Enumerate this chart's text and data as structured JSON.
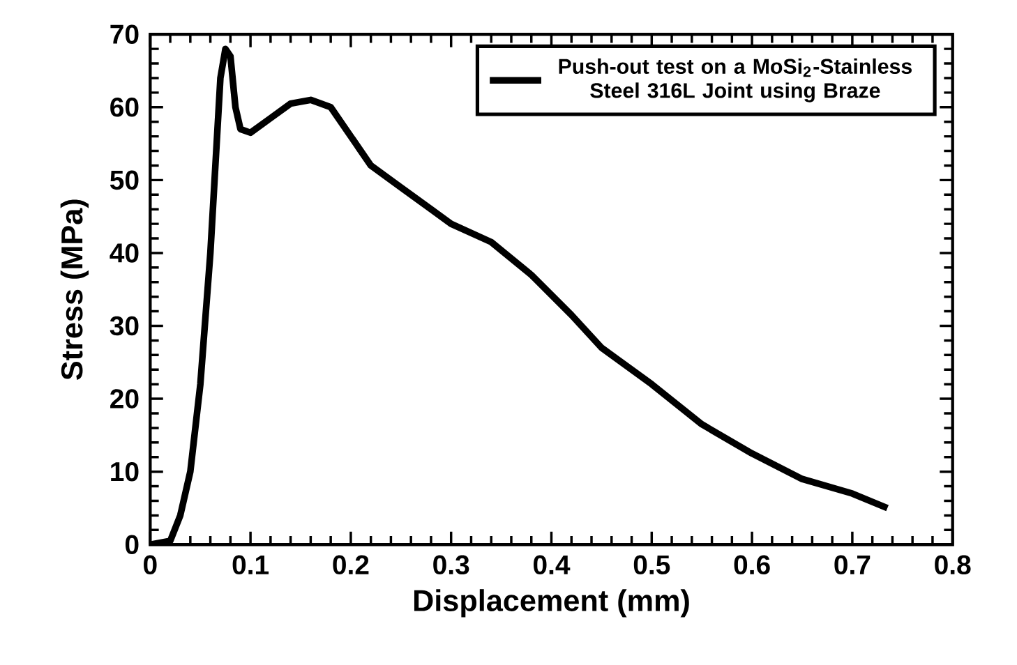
{
  "chart_data": {
    "type": "line",
    "xlabel": "Displacement  (mm)",
    "ylabel": "Stress  (MPa)",
    "xlim": [
      0,
      0.8
    ],
    "xticks": [
      0,
      0.1,
      0.2,
      0.3,
      0.4,
      0.5,
      0.6,
      0.7,
      0.8
    ],
    "ylim": [
      0,
      70
    ],
    "yticks": [
      0,
      10,
      20,
      30,
      40,
      50,
      60,
      70
    ],
    "legend": "top right",
    "grid": false,
    "marker": "none",
    "line_style": "solid",
    "series": [
      {
        "name": "Push-out test on a MoSi$_{2}$-Stainless Steel 316L Joint using Braze",
        "color": "#000000",
        "x": [
          0,
          0.02,
          0.03,
          0.04,
          0.05,
          0.06,
          0.065,
          0.07,
          0.075,
          0.08,
          0.085,
          0.09,
          0.1,
          0.12,
          0.14,
          0.16,
          0.18,
          0.2,
          0.22,
          0.25,
          0.28,
          0.3,
          0.34,
          0.38,
          0.42,
          0.45,
          0.5,
          0.55,
          0.6,
          0.65,
          0.7,
          0.735
        ],
        "values": [
          0,
          0.5,
          4,
          10,
          22,
          40,
          52,
          64,
          68,
          67,
          60,
          57,
          56.5,
          58.5,
          60.5,
          61,
          60,
          56,
          52,
          49,
          46,
          44,
          41.5,
          37,
          31.5,
          27,
          22,
          16.5,
          12.5,
          9,
          7,
          5
        ]
      }
    ]
  }
}
